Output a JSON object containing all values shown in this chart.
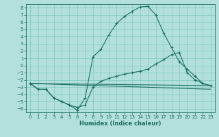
{
  "xlabel": "Humidex (Indice chaleur)",
  "background_color": "#b3e0dc",
  "grid_color": "#7ec8c0",
  "line_color": "#1a6e62",
  "xmin": -0.5,
  "xmax": 23.5,
  "ymin": -6.5,
  "ymax": 8.5,
  "yticks": [
    -6,
    -5,
    -4,
    -3,
    -2,
    -1,
    0,
    1,
    2,
    3,
    4,
    5,
    6,
    7,
    8
  ],
  "xticks": [
    0,
    1,
    2,
    3,
    4,
    5,
    6,
    7,
    8,
    9,
    10,
    11,
    12,
    13,
    14,
    15,
    16,
    17,
    18,
    19,
    20,
    21,
    22,
    23
  ],
  "curve1_x": [
    0,
    1,
    2,
    3,
    4,
    5,
    6,
    7,
    8,
    9,
    10,
    11,
    12,
    13,
    14,
    15,
    16,
    17,
    18,
    19,
    20,
    21,
    22,
    23
  ],
  "curve1_y": [
    -2.5,
    -3.3,
    -3.3,
    -4.5,
    -5.0,
    -5.5,
    -6.2,
    -4.5,
    1.2,
    2.2,
    4.2,
    5.8,
    6.8,
    7.5,
    8.1,
    8.2,
    7.0,
    4.5,
    2.5,
    0.5,
    -0.5,
    -1.5,
    -2.5,
    -2.8
  ],
  "curve2_x": [
    0,
    1,
    2,
    3,
    4,
    5,
    6,
    7,
    8,
    9,
    10,
    11,
    12,
    13,
    14,
    15,
    16,
    17,
    18,
    19,
    20,
    21,
    22,
    23
  ],
  "curve2_y": [
    -2.5,
    -3.3,
    -3.3,
    -4.5,
    -5.0,
    -5.5,
    -5.8,
    -5.5,
    -3.0,
    -2.2,
    -1.8,
    -1.5,
    -1.2,
    -1.0,
    -0.8,
    -0.5,
    0.2,
    0.8,
    1.5,
    1.8,
    -1.0,
    -2.0,
    -2.5,
    -2.8
  ],
  "curve3_x": [
    0,
    23
  ],
  "curve3_y": [
    -2.5,
    -2.8
  ],
  "curve4_x": [
    0,
    23
  ],
  "curve4_y": [
    -2.5,
    -3.3
  ]
}
